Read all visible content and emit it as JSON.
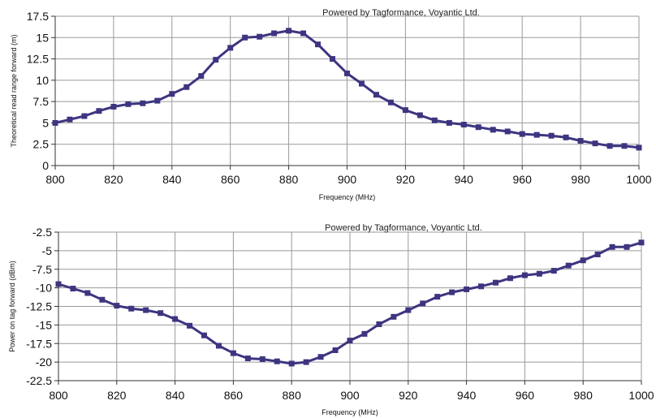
{
  "chart_data": [
    {
      "type": "line",
      "watermark": "Powered by Tagformance, Voyantic Ltd.",
      "xlabel": "Frequency (MHz)",
      "ylabel": "Theoretical read range forward (m)",
      "xlim": [
        800,
        1000
      ],
      "ylim": [
        0,
        17.5
      ],
      "xticks": [
        800,
        820,
        840,
        860,
        880,
        900,
        920,
        940,
        960,
        980,
        1000
      ],
      "yticks": [
        0,
        2.5,
        5,
        7.5,
        10,
        12.5,
        15,
        17.5
      ],
      "ytick_labels": [
        "0",
        "2.5",
        "5",
        "7.5",
        "10",
        "12.5",
        "15",
        "17.5"
      ],
      "grid": true,
      "line_color": "#3d3580",
      "x": [
        800,
        805,
        810,
        815,
        820,
        825,
        830,
        835,
        840,
        845,
        850,
        855,
        860,
        865,
        870,
        875,
        880,
        885,
        890,
        895,
        900,
        905,
        910,
        915,
        920,
        925,
        930,
        935,
        940,
        945,
        950,
        955,
        960,
        965,
        970,
        975,
        980,
        985,
        990,
        995,
        1000
      ],
      "values": [
        5.0,
        5.4,
        5.8,
        6.4,
        6.9,
        7.2,
        7.3,
        7.6,
        8.4,
        9.2,
        10.5,
        12.4,
        13.8,
        15.0,
        15.1,
        15.5,
        15.8,
        15.5,
        14.2,
        12.5,
        10.8,
        9.6,
        8.3,
        7.4,
        6.5,
        5.9,
        5.3,
        5.0,
        4.8,
        4.5,
        4.2,
        4.0,
        3.7,
        3.6,
        3.5,
        3.3,
        2.9,
        2.6,
        2.3,
        2.3,
        2.1
      ]
    },
    {
      "type": "line",
      "watermark": "Powered by Tagformance, Voyantic Ltd.",
      "xlabel": "Frequency (MHz)",
      "ylabel": "Power on tag forward (dBm)",
      "xlim": [
        800,
        1000
      ],
      "ylim": [
        -22.5,
        -2.5
      ],
      "xticks": [
        800,
        820,
        840,
        860,
        880,
        900,
        920,
        940,
        960,
        980,
        1000
      ],
      "yticks": [
        -2.5,
        -5,
        -7.5,
        -10,
        -12.5,
        -15,
        -17.5,
        -20,
        -22.5
      ],
      "ytick_labels": [
        "-2.5",
        "-5",
        "-7.5",
        "-10",
        "-12.5",
        "-15",
        "-17.5",
        "-20",
        "-22.5"
      ],
      "grid": true,
      "line_color": "#3d3580",
      "x": [
        800,
        805,
        810,
        815,
        820,
        825,
        830,
        835,
        840,
        845,
        850,
        855,
        860,
        865,
        870,
        875,
        880,
        885,
        890,
        895,
        900,
        905,
        910,
        915,
        920,
        925,
        930,
        935,
        940,
        945,
        950,
        955,
        960,
        965,
        970,
        975,
        980,
        985,
        990,
        995,
        1000
      ],
      "values": [
        -9.5,
        -10.1,
        -10.7,
        -11.6,
        -12.4,
        -12.8,
        -13.0,
        -13.4,
        -14.2,
        -15.1,
        -16.4,
        -17.8,
        -18.8,
        -19.5,
        -19.6,
        -19.9,
        -20.2,
        -20.0,
        -19.3,
        -18.4,
        -17.1,
        -16.2,
        -14.9,
        -13.9,
        -13.0,
        -12.1,
        -11.2,
        -10.6,
        -10.2,
        -9.8,
        -9.3,
        -8.7,
        -8.3,
        -8.1,
        -7.7,
        -7.0,
        -6.3,
        -5.5,
        -4.5,
        -4.5,
        -3.9
      ]
    }
  ]
}
